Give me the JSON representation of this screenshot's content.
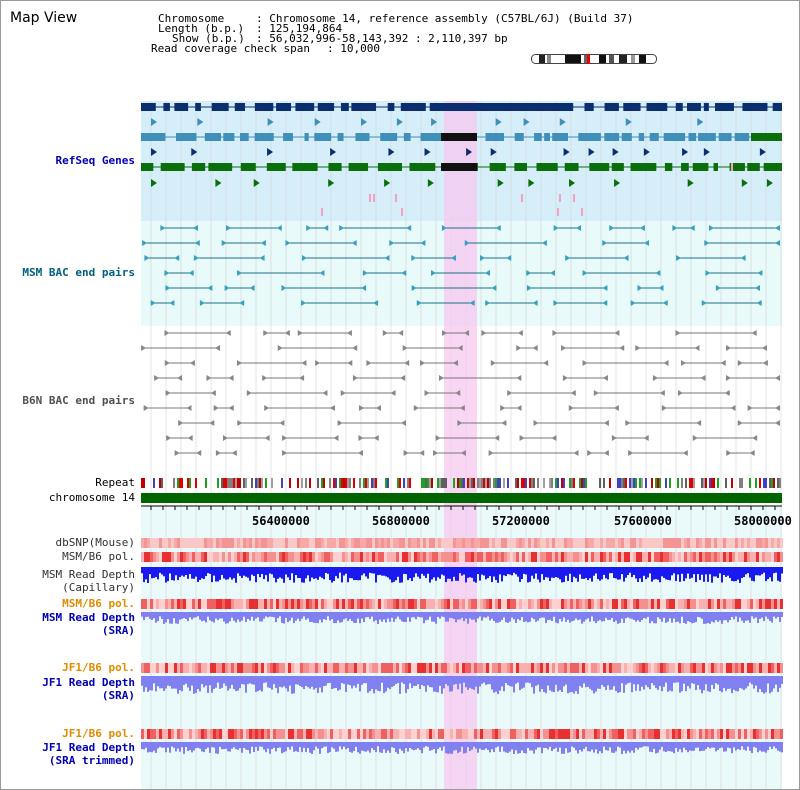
{
  "title": "Map View",
  "info": {
    "chromosome_key": "Chromosome",
    "chromosome_val": ": Chromosome 14, reference assembly (C57BL/6J) (Build 37)",
    "length_key": "Length (b.p.)",
    "length_val": ": 125,194,864",
    "show_key": "Show (b.p.)",
    "show_val": ": 56,032,996-58,143,392 : 2,110,397 bp",
    "coverage_key": "Read coverage check span",
    "coverage_val": ": 10,000"
  },
  "tracks": {
    "refseq": "RefSeq Genes",
    "msm_bac": "MSM BAC end pairs",
    "b6n_bac": "B6N BAC end pairs",
    "repeat": "Repeat",
    "chromosome": "chromosome 14",
    "dbsnp": "dbSNP(Mouse)",
    "msm_pol_1": "MSM/B6 pol.",
    "msm_depth_cap_1": "MSM Read Depth",
    "msm_depth_cap_2": "(Capillary)",
    "msm_pol_2": "MSM/B6 pol.",
    "msm_depth_sra_1": "MSM Read Depth",
    "msm_depth_sra_2": "(SRA)",
    "jf1_pol_1": "JF1/B6 pol.",
    "jf1_depth_sra_1": "JF1 Read Depth",
    "jf1_depth_sra_2": "(SRA)",
    "jf1_pol_2": "JF1/B6 pol.",
    "jf1_depth_trim_1": "JF1 Read Depth",
    "jf1_depth_trim_2": "(SRA trimmed)"
  },
  "axis": {
    "ticks": [
      "56400000",
      "56800000",
      "57200000",
      "57600000",
      "58000000"
    ]
  },
  "colors": {
    "refseq_bg": "#d6eefa",
    "bac_bg": "#e8fafa",
    "gene_dark": "#0b2f6e",
    "gene_mid": "#3f8fb8",
    "gene_green": "#0a6e0a",
    "highlight": "#f7c8f0",
    "chromosome_bar": "#006400",
    "depth_cap": "#1a1aee",
    "depth_sra": "#8080f0"
  },
  "icons": [
    "chromosome-ideogram-icon"
  ]
}
